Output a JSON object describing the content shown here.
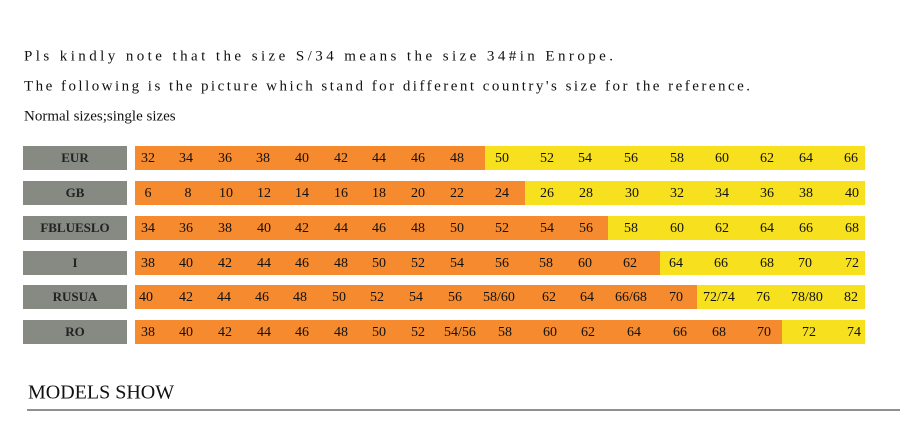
{
  "notes": [
    "Pls kindly note that  the  size S/34 means the size 34#in Enrope.",
    "The following is the picture which stand for different country's size for the reference.",
    "Normal sizes;single sizes"
  ],
  "table": {
    "rows": [
      {
        "label": "EUR",
        "cells": [
          "32",
          "34",
          "36",
          "38",
          "40",
          "42",
          "44",
          "46",
          "48",
          "50",
          "52",
          "54",
          "56",
          "58",
          "60",
          "62",
          "64",
          "66"
        ]
      },
      {
        "label": "GB",
        "cells": [
          "6",
          "8",
          "10",
          "12",
          "14",
          "16",
          "18",
          "20",
          "22",
          "24",
          "26",
          "28",
          "30",
          "32",
          "34",
          "36",
          "38",
          "40"
        ]
      },
      {
        "label": "FBLUESLO",
        "cells": [
          "34",
          "36",
          "38",
          "40",
          "42",
          "44",
          "46",
          "48",
          "50",
          "52",
          "54",
          "56",
          "58",
          "60",
          "62",
          "64",
          "66",
          "68"
        ]
      },
      {
        "label": "I",
        "cells": [
          "38",
          "40",
          "42",
          "44",
          "46",
          "48",
          "50",
          "52",
          "54",
          "56",
          "58",
          "60",
          "62",
          "64",
          "66",
          "68",
          "70",
          "72"
        ]
      },
      {
        "label": "RUSUA",
        "cells": [
          "40",
          "42",
          "44",
          "46",
          "48",
          "50",
          "52",
          "54",
          "56",
          "58/60",
          "62",
          "64",
          "66/68",
          "70",
          "72/74",
          "76",
          "78/80",
          "82"
        ]
      },
      {
        "label": "RO",
        "cells": [
          "38",
          "40",
          "42",
          "44",
          "46",
          "48",
          "50",
          "52",
          "54/56",
          "58",
          "60",
          "62",
          "64",
          "66",
          "68",
          "70",
          "72",
          "74"
        ]
      }
    ]
  },
  "section_title": "MODELS SHOW"
}
